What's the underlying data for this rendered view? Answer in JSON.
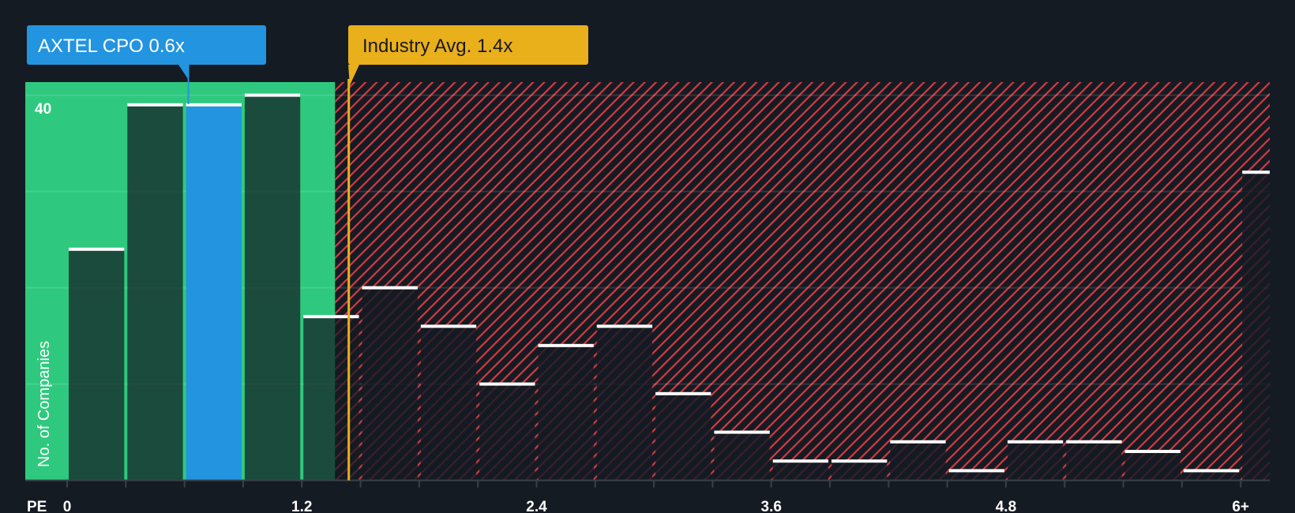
{
  "chart_data": {
    "type": "bar",
    "title": "",
    "xlabel": "PE",
    "ylabel": "No. of Companies",
    "x_tick_labels": [
      "0",
      "1.2",
      "2.4",
      "3.6",
      "4.8",
      "6+"
    ],
    "x_tick_values": [
      0,
      1.2,
      2.4,
      3.6,
      4.8,
      6.0
    ],
    "y_tick_labels": [
      "40"
    ],
    "ylim": [
      0,
      41
    ],
    "y_gridlines": [
      10,
      20,
      30,
      40
    ],
    "bin_width": 0.3,
    "bins": [
      {
        "start": 0.0,
        "value": 24
      },
      {
        "start": 0.3,
        "value": 39
      },
      {
        "start": 0.6,
        "value": 39,
        "highlight": true
      },
      {
        "start": 0.9,
        "value": 40
      },
      {
        "start": 1.2,
        "value": 17
      },
      {
        "start": 1.5,
        "value": 20
      },
      {
        "start": 1.8,
        "value": 16
      },
      {
        "start": 2.1,
        "value": 10
      },
      {
        "start": 2.4,
        "value": 14
      },
      {
        "start": 2.7,
        "value": 16
      },
      {
        "start": 3.0,
        "value": 9
      },
      {
        "start": 3.3,
        "value": 5
      },
      {
        "start": 3.6,
        "value": 2
      },
      {
        "start": 3.9,
        "value": 2
      },
      {
        "start": 4.2,
        "value": 4
      },
      {
        "start": 4.5,
        "value": 1
      },
      {
        "start": 4.8,
        "value": 4
      },
      {
        "start": 5.1,
        "value": 4
      },
      {
        "start": 5.4,
        "value": 3
      },
      {
        "start": 5.7,
        "value": 1
      },
      {
        "start": 6.0,
        "value": 32,
        "label": "6+"
      }
    ],
    "company": {
      "label": "AXTEL CPO 0.6x",
      "value": 0.62
    },
    "industry_avg": {
      "label": "Industry Avg. 1.4x",
      "value": 1.44
    },
    "fair_range_end": 1.37,
    "colors": {
      "background": "#151b23",
      "good_zone": "#2ec97e",
      "bad_hatch": "#d43a42",
      "company": "#2394e0",
      "industry": "#e9b01c",
      "bar_cap": "#ffffff"
    }
  }
}
